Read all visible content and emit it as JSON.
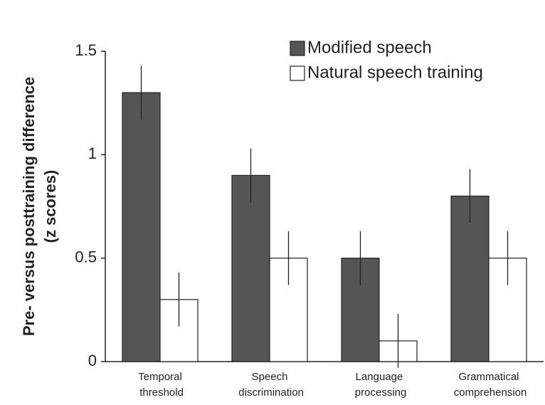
{
  "chart_data": {
    "type": "bar",
    "ylabel": [
      "Pre- versus posttraining difference",
      "(z scores)"
    ],
    "categories": [
      "Temporal threshold",
      "Speech discrimination",
      "Language processing",
      "Grammatical comprehension"
    ],
    "series": [
      {
        "name": "Modified speech",
        "color": "#555555",
        "values": [
          1.3,
          0.9,
          0.5,
          0.8
        ],
        "errors": [
          0.13,
          0.13,
          0.13,
          0.13
        ]
      },
      {
        "name": "Natural speech training",
        "color": "#ffffff",
        "values": [
          0.3,
          0.5,
          0.1,
          0.5
        ],
        "errors": [
          0.13,
          0.13,
          0.13,
          0.13
        ]
      }
    ],
    "ylim": [
      0,
      1.5
    ],
    "yticks": [
      0,
      0.5,
      1,
      1.5
    ],
    "grid": false,
    "legend": "top-right"
  }
}
